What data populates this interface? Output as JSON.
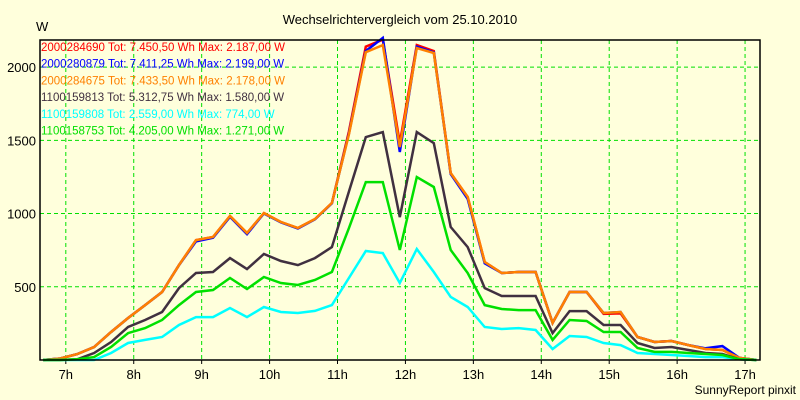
{
  "chart_data": {
    "type": "line",
    "title": "Wechselrichtervergleich vom 25.10.2010",
    "ylabel": "W",
    "xlabel": "",
    "footer": "SunnyReport pinxit",
    "x_start_hour": 6.667,
    "x_step_hours": 0.25,
    "xlim": [
      6.62,
      17.22
    ],
    "ylim": [
      0,
      2185
    ],
    "x_ticks": [
      7,
      8,
      9,
      10,
      11,
      12,
      13,
      14,
      15,
      16,
      17
    ],
    "x_tick_labels": [
      "7h",
      "8h",
      "9h",
      "10h",
      "11h",
      "12h",
      "13h",
      "14h",
      "15h",
      "16h",
      "17h"
    ],
    "y_ticks": [
      500,
      1000,
      1500,
      2000
    ],
    "y_tick_labels": [
      "500",
      "1000",
      "1500",
      "2000"
    ],
    "grid": true,
    "legend_position": "top-left",
    "series": [
      {
        "name": "2000284690 Tot: 7.450,50 Wh Max: 2.187,00 W",
        "color": "#FF0000",
        "values": [
          0,
          10,
          40,
          89,
          191,
          287,
          375,
          464,
          648,
          819,
          840,
          983,
          867,
          1003,
          942,
          901,
          962,
          1072,
          1560,
          2140,
          2187,
          1480,
          2150,
          2110,
          1276,
          1113,
          669,
          594,
          601,
          601,
          253,
          464,
          464,
          315,
          318,
          157,
          123,
          130,
          102,
          75,
          68,
          14,
          0
        ]
      },
      {
        "name": "2000280879 Tot: 7.411,25 Wh Max: 2.199,00 W",
        "color": "#0000FF",
        "values": [
          0,
          10,
          40,
          89,
          191,
          287,
          375,
          464,
          648,
          810,
          835,
          978,
          860,
          1000,
          940,
          898,
          960,
          1070,
          1545,
          2110,
          2199,
          1420,
          2140,
          2100,
          1270,
          1100,
          660,
          594,
          601,
          601,
          253,
          464,
          464,
          321,
          328,
          157,
          123,
          130,
          102,
          80,
          95,
          14,
          0
        ]
      },
      {
        "name": "2000284675 Tot: 7.433,50 Wh Max: 2.178,00 W",
        "color": "#FF8000",
        "values": [
          0,
          10,
          40,
          89,
          191,
          287,
          375,
          464,
          648,
          819,
          840,
          983,
          867,
          1003,
          942,
          901,
          962,
          1072,
          1540,
          2102,
          2150,
          1454,
          2130,
          2096,
          1276,
          1113,
          669,
          594,
          601,
          601,
          253,
          464,
          464,
          321,
          328,
          157,
          123,
          130,
          102,
          75,
          68,
          14,
          0
        ]
      },
      {
        "name": "1100159813 Tot: 5.312,75 Wh Max: 1.580,00 W",
        "color": "#403040",
        "values": [
          0,
          0,
          5,
          48,
          123,
          225,
          273,
          328,
          491,
          594,
          601,
          696,
          621,
          724,
          676,
          648,
          696,
          771,
          1150,
          1522,
          1556,
          976,
          1556,
          1481,
          908,
          771,
          491,
          437,
          437,
          437,
          184,
          334,
          334,
          239,
          239,
          116,
          82,
          89,
          68,
          48,
          41,
          5,
          0
        ]
      },
      {
        "name": "1100159808 Tot: 2.559,00 Wh Max: 774,00 W",
        "color": "#00FFFF",
        "values": [
          0,
          0,
          0,
          0,
          48,
          116,
          137,
          157,
          239,
          293,
          293,
          355,
          293,
          362,
          328,
          321,
          335,
          375,
          560,
          744,
          730,
          526,
          758,
          601,
          430,
          362,
          225,
          212,
          218,
          205,
          75,
          164,
          157,
          116,
          102,
          48,
          41,
          34,
          27,
          20,
          20,
          5,
          0
        ]
      },
      {
        "name": "1100158753 Tot: 4.205,00 Wh Max: 1.271,00 W",
        "color": "#00E000",
        "values": [
          0,
          0,
          5,
          20,
          89,
          184,
          218,
          273,
          375,
          464,
          478,
          560,
          485,
          567,
          526,
          512,
          546,
          601,
          900,
          1215,
          1215,
          751,
          1249,
          1181,
          751,
          594,
          375,
          348,
          341,
          341,
          137,
          273,
          266,
          191,
          191,
          82,
          55,
          55,
          48,
          41,
          34,
          5,
          0
        ]
      }
    ]
  }
}
